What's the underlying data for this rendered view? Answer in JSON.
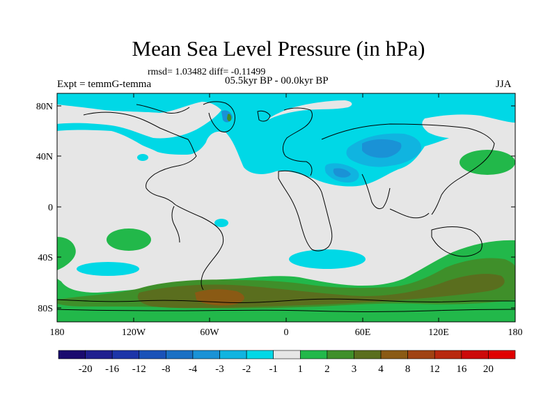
{
  "title": "Mean Sea Level Pressure (in hPa)",
  "stats": {
    "text": "rmsd= 1.03482 diff= -0.11499"
  },
  "period": "05.5kyr BP - 00.0kyr BP",
  "experiment": "Expt = temmG-temma",
  "season": "JJA",
  "axes": {
    "lat_labels": [
      "80N",
      "40N",
      "0",
      "40S",
      "80S"
    ],
    "lon_labels": [
      "180",
      "120W",
      "60W",
      "0",
      "60E",
      "120E",
      "180"
    ]
  },
  "colorbar": {
    "labels": [
      "-20",
      "-16",
      "-12",
      "-8",
      "-4",
      "-3",
      "-2",
      "-1",
      "1",
      "2",
      "3",
      "4",
      "8",
      "12",
      "16",
      "20"
    ],
    "colors": [
      "#1a0a6e",
      "#1f1f8f",
      "#1c35a8",
      "#1a52b8",
      "#1a70c4",
      "#1a92d6",
      "#10b4e0",
      "#00d8e6",
      "#e6e6e6",
      "#22b84a",
      "#3f8f2a",
      "#5a6e1e",
      "#8a5a14",
      "#a04212",
      "#b8280e",
      "#cc0a0a",
      "#e00000"
    ]
  },
  "map_colors": {
    "neutral": "#e6e6e6",
    "light_cyan": "#00d8e6",
    "cyan": "#10b4e0",
    "blue": "#1a92d6",
    "light_green": "#22b84a",
    "green": "#3f8f2a",
    "olive": "#5a6e1e",
    "brown": "#8a5a14"
  }
}
